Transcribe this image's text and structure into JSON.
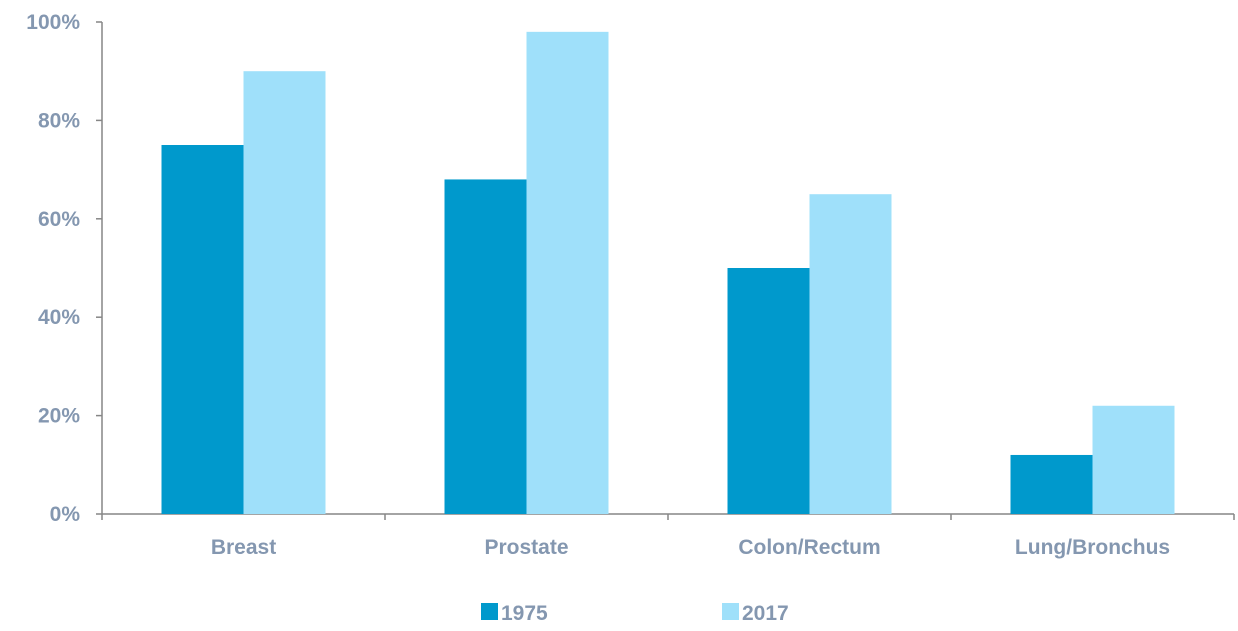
{
  "chart_data": {
    "type": "bar",
    "title": "",
    "xlabel": "",
    "ylabel": "",
    "categories": [
      "Breast",
      "Prostate",
      "Colon/Rectum",
      "Lung/Bronchus"
    ],
    "series": [
      {
        "name": "1975",
        "color": "#0099cc",
        "values": [
          75,
          68,
          50,
          12
        ]
      },
      {
        "name": "2017",
        "color": "#9fe0fa",
        "values": [
          90,
          98,
          65,
          22
        ]
      }
    ],
    "ylim": [
      0,
      100
    ],
    "yticks": [
      0,
      20,
      40,
      60,
      80,
      100
    ],
    "ytick_labels": [
      "0%",
      "20%",
      "40%",
      "60%",
      "80%",
      "100%"
    ],
    "grid": false,
    "legend_position": "bottom-center",
    "text_color": "#8497b0",
    "axis_color": "#868686"
  }
}
